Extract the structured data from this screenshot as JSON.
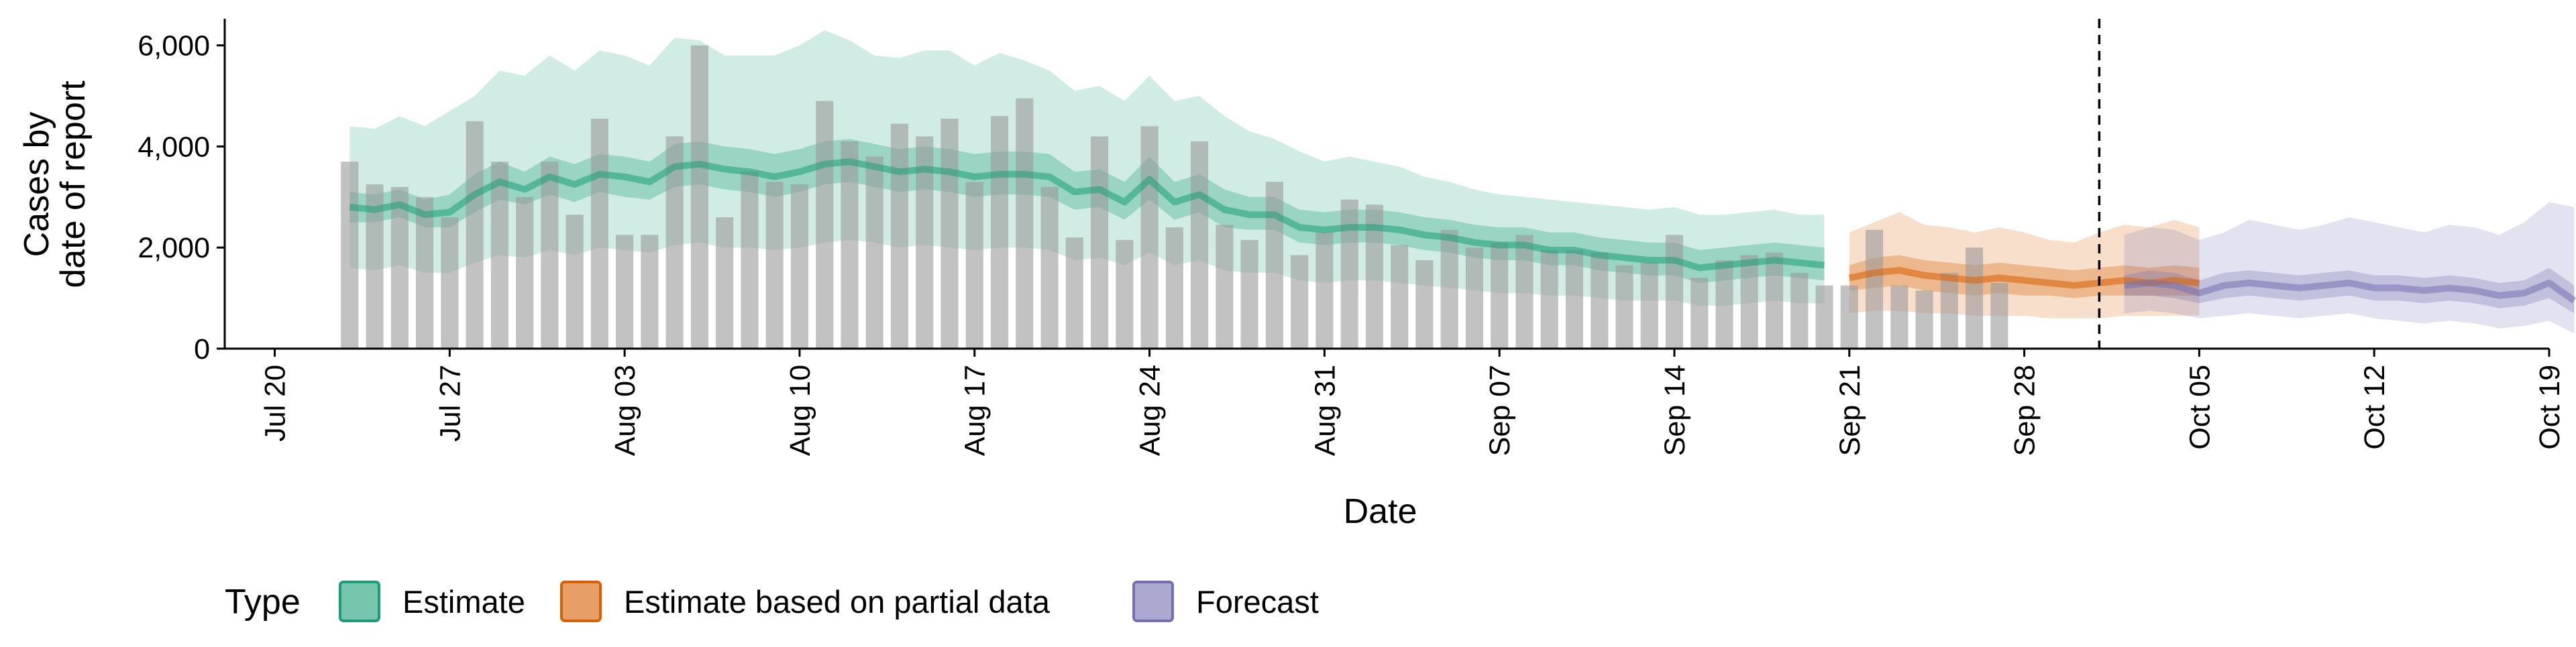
{
  "chart_data": {
    "type": "bar",
    "xlabel": "Date",
    "ylabel_lines": [
      "Cases by",
      "date of report"
    ],
    "ylim": [
      0,
      6500
    ],
    "y_ticks": [
      0,
      2000,
      4000,
      6000
    ],
    "y_tick_labels": [
      "0",
      "2,000",
      "4,000",
      "6,000"
    ],
    "x_ticks": [
      "2020-07-20",
      "2020-07-27",
      "2020-08-03",
      "2020-08-10",
      "2020-08-17",
      "2020-08-24",
      "2020-08-31",
      "2020-09-07",
      "2020-09-14",
      "2020-09-21",
      "2020-09-28",
      "2020-10-05",
      "2020-10-12",
      "2020-10-19"
    ],
    "x_tick_labels": [
      "Jul 20",
      "Jul 27",
      "Aug 03",
      "Aug 10",
      "Aug 17",
      "Aug 24",
      "Aug 31",
      "Sep 07",
      "Sep 14",
      "Sep 21",
      "Sep 28",
      "Oct 05",
      "Oct 12",
      "Oct 19"
    ],
    "x_range": [
      "2020-07-18",
      "2020-10-19"
    ],
    "grid": false,
    "bars_start_date": "2020-07-23",
    "bars": [
      3700,
      3250,
      3200,
      3000,
      2600,
      4500,
      3700,
      3000,
      3700,
      2650,
      4550,
      2250,
      2250,
      4200,
      6000,
      2600,
      3500,
      3300,
      3250,
      4900,
      4100,
      3800,
      4450,
      4200,
      4550,
      3300,
      4600,
      4950,
      3200,
      2200,
      4200,
      2150,
      4400,
      2400,
      4100,
      2450,
      2150,
      3300,
      1850,
      2300,
      2950,
      2850,
      2050,
      1750,
      2350,
      2000,
      2100,
      2250,
      1950,
      1950,
      1900,
      1650,
      1700,
      2250,
      1400,
      1750,
      1850,
      1900,
      1500,
      1250,
      1250,
      2350,
      1250,
      1150,
      1500,
      2000,
      1300
    ],
    "vline_date": "2020-10-01",
    "legend_title": "Type",
    "legend_position": "bottom",
    "series": [
      {
        "name": "Estimate",
        "color": "#1b9e77",
        "start_date": "2020-07-23",
        "median": [
          2800,
          2750,
          2850,
          2650,
          2700,
          3050,
          3300,
          3150,
          3400,
          3250,
          3450,
          3400,
          3300,
          3600,
          3650,
          3550,
          3500,
          3400,
          3500,
          3650,
          3700,
          3600,
          3500,
          3550,
          3500,
          3400,
          3450,
          3450,
          3400,
          3100,
          3150,
          2900,
          3350,
          2900,
          3050,
          2750,
          2650,
          2650,
          2400,
          2350,
          2400,
          2400,
          2350,
          2250,
          2200,
          2100,
          2050,
          2050,
          1950,
          1950,
          1850,
          1800,
          1750,
          1750,
          1600,
          1650,
          1700,
          1750,
          1700,
          1650
        ],
        "inner": [
          [
            2500,
            3100
          ],
          [
            2500,
            3050
          ],
          [
            2600,
            3150
          ],
          [
            2400,
            2950
          ],
          [
            2400,
            3050
          ],
          [
            2700,
            3450
          ],
          [
            2950,
            3700
          ],
          [
            2850,
            3500
          ],
          [
            3050,
            3800
          ],
          [
            2900,
            3650
          ],
          [
            3100,
            3850
          ],
          [
            3000,
            3800
          ],
          [
            2950,
            3700
          ],
          [
            3200,
            4050
          ],
          [
            3250,
            4100
          ],
          [
            3150,
            4000
          ],
          [
            3100,
            3950
          ],
          [
            3000,
            3850
          ],
          [
            3100,
            3950
          ],
          [
            3250,
            4100
          ],
          [
            3300,
            4150
          ],
          [
            3200,
            4050
          ],
          [
            3100,
            3950
          ],
          [
            3150,
            4000
          ],
          [
            3100,
            3950
          ],
          [
            3000,
            3850
          ],
          [
            3050,
            3900
          ],
          [
            3050,
            3900
          ],
          [
            3000,
            3850
          ],
          [
            2750,
            3500
          ],
          [
            2800,
            3550
          ],
          [
            2550,
            3300
          ],
          [
            2950,
            3800
          ],
          [
            2550,
            3300
          ],
          [
            2700,
            3450
          ],
          [
            2400,
            3150
          ],
          [
            2350,
            3000
          ],
          [
            2350,
            3000
          ],
          [
            2100,
            2750
          ],
          [
            2050,
            2700
          ],
          [
            2100,
            2750
          ],
          [
            2100,
            2750
          ],
          [
            2050,
            2700
          ],
          [
            1950,
            2600
          ],
          [
            1900,
            2550
          ],
          [
            1800,
            2450
          ],
          [
            1750,
            2400
          ],
          [
            1750,
            2400
          ],
          [
            1650,
            2300
          ],
          [
            1650,
            2300
          ],
          [
            1550,
            2200
          ],
          [
            1500,
            2150
          ],
          [
            1450,
            2100
          ],
          [
            1450,
            2100
          ],
          [
            1300,
            1950
          ],
          [
            1350,
            2000
          ],
          [
            1400,
            2050
          ],
          [
            1450,
            2100
          ],
          [
            1400,
            2050
          ],
          [
            1350,
            2000
          ]
        ],
        "outer": [
          [
            1600,
            4400
          ],
          [
            1550,
            4350
          ],
          [
            1650,
            4600
          ],
          [
            1500,
            4400
          ],
          [
            1500,
            4700
          ],
          [
            1700,
            5000
          ],
          [
            1850,
            5500
          ],
          [
            1800,
            5400
          ],
          [
            1950,
            5800
          ],
          [
            1850,
            5500
          ],
          [
            2000,
            5900
          ],
          [
            1950,
            5800
          ],
          [
            1900,
            5600
          ],
          [
            2050,
            6150
          ],
          [
            2100,
            6100
          ],
          [
            2000,
            5800
          ],
          [
            2000,
            5800
          ],
          [
            1950,
            5800
          ],
          [
            2000,
            6000
          ],
          [
            2100,
            6300
          ],
          [
            2150,
            6100
          ],
          [
            2100,
            5800
          ],
          [
            2000,
            5750
          ],
          [
            2050,
            5900
          ],
          [
            2000,
            5900
          ],
          [
            1950,
            5600
          ],
          [
            2000,
            5850
          ],
          [
            2000,
            5700
          ],
          [
            1950,
            5500
          ],
          [
            1750,
            5100
          ],
          [
            1800,
            5200
          ],
          [
            1650,
            4900
          ],
          [
            1900,
            5400
          ],
          [
            1650,
            4900
          ],
          [
            1750,
            5000
          ],
          [
            1550,
            4600
          ],
          [
            1500,
            4300
          ],
          [
            1500,
            4150
          ],
          [
            1350,
            3900
          ],
          [
            1300,
            3700
          ],
          [
            1350,
            3800
          ],
          [
            1350,
            3700
          ],
          [
            1300,
            3600
          ],
          [
            1250,
            3400
          ],
          [
            1200,
            3300
          ],
          [
            1150,
            3150
          ],
          [
            1100,
            3050
          ],
          [
            1100,
            3000
          ],
          [
            1050,
            2950
          ],
          [
            1050,
            2900
          ],
          [
            1000,
            2850
          ],
          [
            950,
            2800
          ],
          [
            950,
            2750
          ],
          [
            950,
            2800
          ],
          [
            850,
            2650
          ],
          [
            850,
            2650
          ],
          [
            900,
            2700
          ],
          [
            950,
            2750
          ],
          [
            900,
            2650
          ],
          [
            900,
            2650
          ]
        ]
      },
      {
        "name": "Estimate based on partial data",
        "color": "#d95f02",
        "start_date": "2020-09-21",
        "median": [
          1400,
          1500,
          1550,
          1450,
          1400,
          1350,
          1400,
          1350,
          1300,
          1250,
          1300,
          1350,
          1300,
          1350,
          1300
        ],
        "inner": [
          [
            1150,
            1650
          ],
          [
            1200,
            1800
          ],
          [
            1250,
            1850
          ],
          [
            1150,
            1750
          ],
          [
            1100,
            1700
          ],
          [
            1050,
            1650
          ],
          [
            1100,
            1700
          ],
          [
            1050,
            1650
          ],
          [
            1050,
            1600
          ],
          [
            1000,
            1550
          ],
          [
            1050,
            1600
          ],
          [
            1050,
            1650
          ],
          [
            1050,
            1600
          ],
          [
            1050,
            1650
          ],
          [
            1050,
            1600
          ]
        ],
        "outer": [
          [
            700,
            2300
          ],
          [
            750,
            2500
          ],
          [
            750,
            2700
          ],
          [
            700,
            2450
          ],
          [
            700,
            2400
          ],
          [
            650,
            2300
          ],
          [
            650,
            2400
          ],
          [
            650,
            2300
          ],
          [
            600,
            2150
          ],
          [
            600,
            2100
          ],
          [
            600,
            2300
          ],
          [
            650,
            2450
          ],
          [
            650,
            2400
          ],
          [
            650,
            2550
          ],
          [
            650,
            2400
          ]
        ]
      },
      {
        "name": "Forecast",
        "color": "#7570b3",
        "start_date": "2020-10-02",
        "median": [
          1250,
          1300,
          1250,
          1100,
          1250,
          1300,
          1250,
          1200,
          1250,
          1300,
          1200,
          1200,
          1150,
          1200,
          1150,
          1050,
          1100,
          1300,
          950
        ],
        "inner": [
          [
            1050,
            1450
          ],
          [
            1050,
            1550
          ],
          [
            1000,
            1500
          ],
          [
            900,
            1350
          ],
          [
            1000,
            1500
          ],
          [
            1050,
            1550
          ],
          [
            1000,
            1500
          ],
          [
            950,
            1450
          ],
          [
            1000,
            1500
          ],
          [
            1050,
            1550
          ],
          [
            950,
            1450
          ],
          [
            950,
            1450
          ],
          [
            900,
            1400
          ],
          [
            950,
            1450
          ],
          [
            900,
            1400
          ],
          [
            800,
            1300
          ],
          [
            850,
            1350
          ],
          [
            1000,
            1600
          ],
          [
            700,
            1250
          ]
        ],
        "outer": [
          [
            700,
            2250
          ],
          [
            750,
            2400
          ],
          [
            700,
            2350
          ],
          [
            600,
            2150
          ],
          [
            650,
            2300
          ],
          [
            700,
            2550
          ],
          [
            650,
            2450
          ],
          [
            600,
            2350
          ],
          [
            650,
            2450
          ],
          [
            700,
            2600
          ],
          [
            600,
            2500
          ],
          [
            550,
            2400
          ],
          [
            500,
            2300
          ],
          [
            550,
            2450
          ],
          [
            500,
            2400
          ],
          [
            400,
            2250
          ],
          [
            450,
            2500
          ],
          [
            550,
            2900
          ],
          [
            300,
            2800
          ]
        ]
      }
    ]
  }
}
